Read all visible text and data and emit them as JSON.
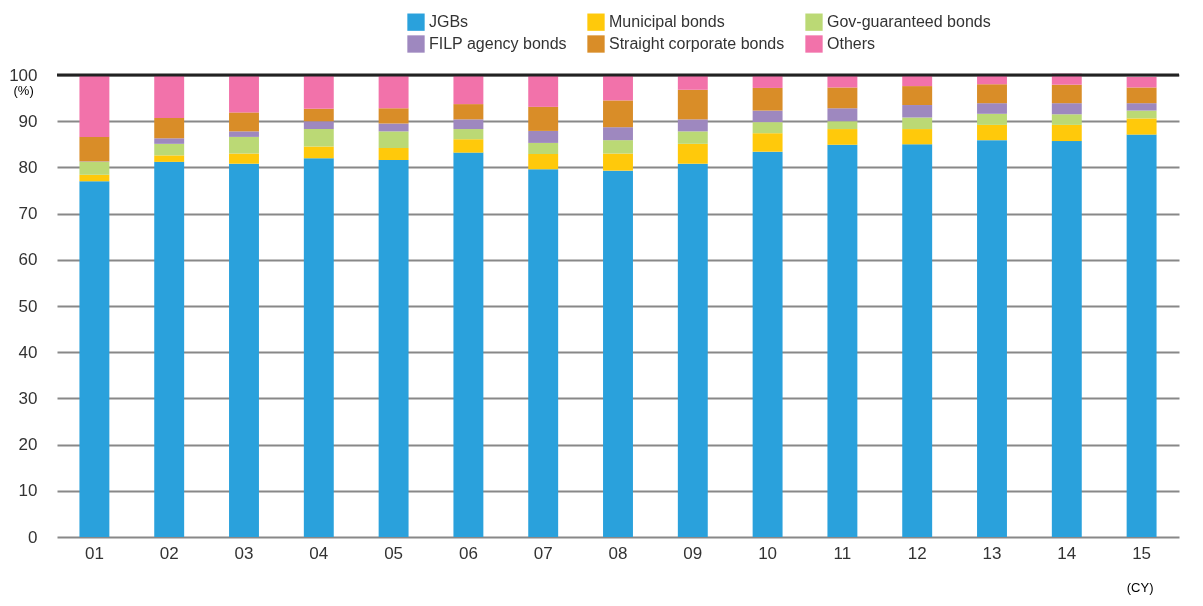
{
  "chart_data": {
    "type": "bar",
    "stacked": true,
    "xlabel": "(CY)",
    "ylabel": "(%)",
    "categories": [
      "01",
      "02",
      "03",
      "04",
      "05",
      "06",
      "07",
      "08",
      "09",
      "10",
      "11",
      "12",
      "13",
      "14",
      "15"
    ],
    "series": [
      {
        "name": "JGBs",
        "color": "#2aa1dc",
        "values": [
          77.0,
          81.2,
          80.8,
          82.0,
          81.6,
          83.2,
          79.6,
          79.3,
          80.8,
          83.4,
          84.9,
          85.0,
          85.9,
          85.7,
          87.1
        ]
      },
      {
        "name": "Municipal bonds",
        "color": "#ffc90b",
        "values": [
          1.4,
          1.4,
          2.2,
          2.5,
          2.6,
          2.9,
          3.3,
          3.7,
          4.3,
          4.0,
          3.4,
          3.3,
          3.3,
          3.5,
          3.5
        ]
      },
      {
        "name": "Gov-guaranteed bonds",
        "color": "#bbd975",
        "values": [
          2.8,
          2.5,
          3.6,
          3.8,
          3.6,
          2.2,
          2.4,
          2.9,
          2.7,
          2.4,
          1.7,
          2.5,
          2.4,
          2.3,
          1.7
        ]
      },
      {
        "name": "FILP agency bonds",
        "color": "#9e88bf",
        "values": [
          0.1,
          1.2,
          1.2,
          1.7,
          1.7,
          2.1,
          2.6,
          2.8,
          2.6,
          2.5,
          2.8,
          2.7,
          2.3,
          2.4,
          1.6
        ]
      },
      {
        "name": "Straight corporate bonds",
        "color": "#d98d28",
        "values": [
          5.3,
          4.4,
          4.1,
          2.7,
          3.3,
          3.3,
          5.2,
          5.8,
          6.4,
          4.9,
          4.5,
          4.1,
          4.1,
          4.0,
          3.4
        ]
      },
      {
        "name": "Others",
        "color": "#f272aa",
        "values": [
          13.4,
          9.3,
          8.1,
          7.3,
          7.2,
          6.3,
          6.9,
          5.5,
          3.2,
          2.8,
          2.7,
          2.4,
          2.0,
          2.4,
          2.3
        ]
      }
    ],
    "ylim": [
      0,
      100
    ],
    "yticks": [
      0,
      10,
      20,
      30,
      40,
      50,
      60,
      70,
      80,
      90,
      100
    ],
    "grid": "y",
    "legend": "top right"
  }
}
